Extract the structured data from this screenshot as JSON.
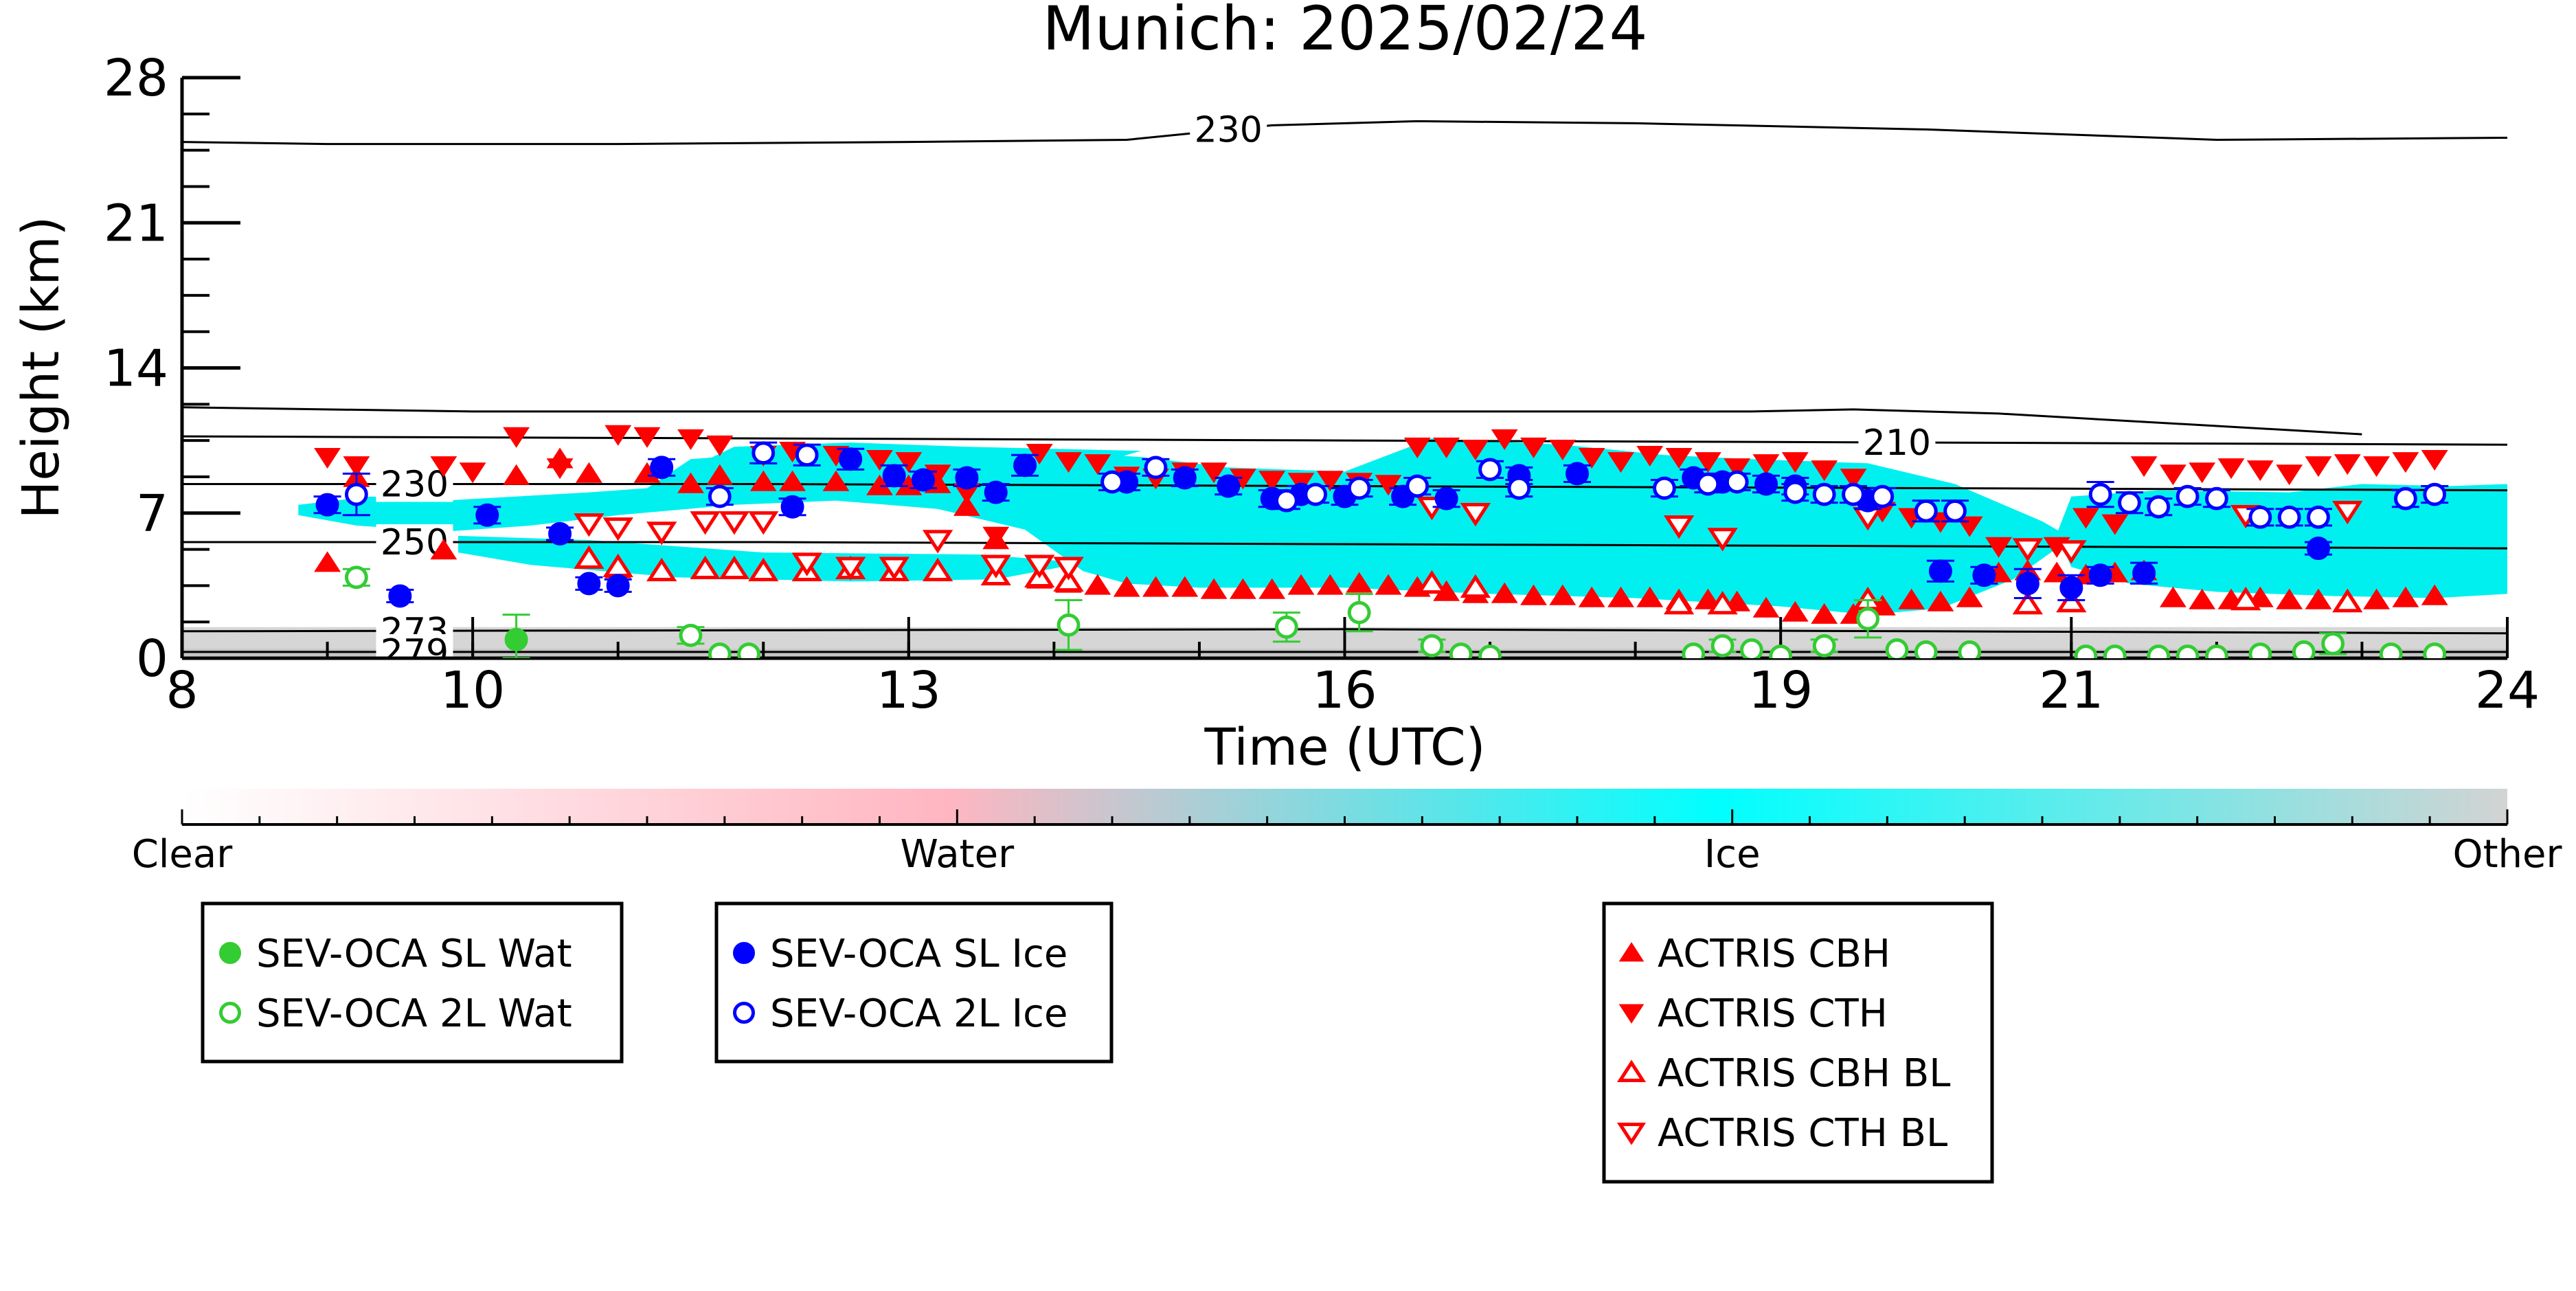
{
  "chart_data": {
    "type": "scatter",
    "title": "Munich: 2025/02/24",
    "xlabel": "Time (UTC)",
    "ylabel": "Height (km)",
    "xlim": [
      8,
      24
    ],
    "ylim": [
      0,
      28
    ],
    "x_ticks": [
      8,
      10,
      13,
      16,
      19,
      21,
      24
    ],
    "y_ticks": [
      0,
      7,
      14,
      21,
      28
    ],
    "background_field": "cloud phase (Clear / Water / Ice / Other), ice-dominated layer ~2–11 km from ~8.8 to 24 UTC",
    "colorbar": {
      "labels": [
        "Clear",
        "Water",
        "Ice",
        "Other"
      ],
      "colors": [
        "#ffffff",
        "#ffb6c1",
        "#00ffff",
        "#d3d3d3"
      ]
    },
    "contours": [
      {
        "label": "230",
        "label_x": 15.2,
        "points": [
          [
            8,
            24.9
          ],
          [
            9,
            24.8
          ],
          [
            11,
            24.8
          ],
          [
            13,
            24.9
          ],
          [
            14.5,
            25.0
          ],
          [
            15.5,
            25.7
          ],
          [
            16.5,
            25.9
          ],
          [
            18,
            25.8
          ],
          [
            20,
            25.5
          ],
          [
            22,
            25.0
          ],
          [
            24,
            25.1
          ]
        ]
      },
      {
        "label": "210",
        "label_x": 19.8,
        "points": [
          [
            8,
            10.7
          ],
          [
            12,
            10.6
          ],
          [
            16,
            10.5
          ],
          [
            20,
            10.4
          ],
          [
            24,
            10.3
          ]
        ]
      },
      {
        "label": "230",
        "label_x": 9.6,
        "points": [
          [
            8,
            8.4
          ],
          [
            12,
            8.4
          ],
          [
            16,
            8.3
          ],
          [
            20,
            8.2
          ],
          [
            24,
            8.1
          ]
        ]
      },
      {
        "label": "250",
        "label_x": 9.6,
        "points": [
          [
            8,
            5.6
          ],
          [
            12,
            5.6
          ],
          [
            16,
            5.5
          ],
          [
            20,
            5.4
          ],
          [
            24,
            5.3
          ]
        ]
      },
      {
        "label": "273",
        "label_x": 9.6,
        "points": [
          [
            8,
            1.3
          ],
          [
            12,
            1.35
          ],
          [
            16,
            1.4
          ],
          [
            20,
            1.3
          ],
          [
            24,
            1.2
          ]
        ]
      },
      {
        "label": "279",
        "label_x": 9.6,
        "points": [
          [
            8,
            0.3
          ],
          [
            16,
            0.3
          ],
          [
            24,
            0.3
          ]
        ]
      }
    ],
    "tropopause_line": {
      "points": [
        [
          8,
          12.1
        ],
        [
          10,
          11.9
        ],
        [
          13,
          11.9
        ],
        [
          16,
          11.9
        ],
        [
          18,
          11.9
        ],
        [
          18.8,
          11.9
        ],
        [
          19.5,
          12.0
        ],
        [
          20.5,
          11.8
        ],
        [
          21.5,
          11.4
        ],
        [
          22.5,
          11.0
        ],
        [
          23,
          10.8
        ]
      ]
    },
    "colors": {
      "sev_wat": "#33cc33",
      "sev_ice": "#0000ff",
      "actris": "#ff0000",
      "ice_field": "#00f0f0",
      "other_band": "#cfcfcf"
    },
    "series": [
      {
        "name": "SEV-OCA SL Wat",
        "marker": "filled-circle",
        "x": [
          10.3
        ],
        "y": [
          0.9
        ],
        "err": [
          1.2
        ]
      },
      {
        "name": "SEV-OCA 2L Wat",
        "marker": "open-circle",
        "x": [
          9.2,
          11.5,
          11.7,
          11.9,
          14.1,
          15.6,
          16.1,
          16.6,
          16.8,
          17.0,
          18.4,
          18.6,
          18.8,
          19.0,
          19.3,
          19.6,
          19.8,
          20.0,
          20.3,
          21.1,
          21.3,
          21.6,
          21.8,
          22.0,
          22.3,
          22.6,
          22.8,
          23.2,
          23.5
        ],
        "y": [
          3.9,
          1.1,
          0.2,
          0.2,
          1.6,
          1.5,
          2.2,
          0.6,
          0.2,
          0.1,
          0.2,
          0.6,
          0.4,
          0.1,
          0.6,
          1.9,
          0.4,
          0.3,
          0.3,
          0.1,
          0.1,
          0.1,
          0.1,
          0.1,
          0.2,
          0.3,
          0.7,
          0.2,
          0.2
        ],
        "err": [
          0.4,
          0.4,
          0,
          0,
          1.2,
          0.7,
          0.9,
          0.3,
          0,
          0,
          0,
          0.3,
          0,
          0,
          0.3,
          0.9,
          0,
          0,
          0,
          0,
          0,
          0,
          0,
          0,
          0,
          0,
          0.5,
          0,
          0
        ]
      },
      {
        "name": "SEV-OCA SL Ice",
        "marker": "filled-circle",
        "x": [
          9.0,
          9.5,
          10.1,
          10.6,
          10.8,
          11.0,
          11.3,
          12.2,
          12.6,
          12.9,
          13.1,
          13.4,
          13.6,
          13.8,
          14.5,
          14.9,
          15.2,
          15.5,
          15.7,
          16.0,
          16.4,
          16.7,
          17.2,
          17.6,
          18.4,
          18.6,
          18.9,
          19.1,
          19.6,
          20.1,
          20.4,
          20.7,
          21.0,
          21.2,
          21.5,
          22.7
        ],
        "y": [
          7.4,
          3.0,
          6.9,
          6.0,
          3.6,
          3.5,
          9.2,
          7.3,
          9.6,
          8.8,
          8.6,
          8.7,
          8.0,
          9.3,
          8.5,
          8.7,
          8.3,
          7.7,
          7.9,
          7.8,
          7.8,
          7.7,
          8.8,
          8.9,
          8.7,
          8.5,
          8.4,
          8.3,
          7.6,
          4.2,
          4.0,
          3.6,
          3.4,
          4.0,
          4.1,
          5.3
        ],
        "err": [
          0.4,
          0.3,
          0.4,
          0.3,
          0.3,
          0.3,
          0.4,
          0.4,
          0.5,
          0.5,
          0.4,
          0.4,
          0.4,
          0.5,
          0.4,
          0.4,
          0.4,
          0.4,
          0.4,
          0.4,
          0.4,
          0.4,
          0.4,
          0.4,
          0.4,
          0.4,
          0.4,
          0.4,
          0.4,
          0.5,
          0.4,
          0.7,
          0.6,
          0.4,
          0.5,
          0.3
        ]
      },
      {
        "name": "SEV-OCA 2L Ice",
        "marker": "open-circle",
        "x": [
          9.2,
          11.7,
          12.0,
          12.3,
          14.4,
          14.7,
          15.6,
          15.8,
          16.1,
          16.5,
          17.0,
          17.2,
          18.2,
          18.5,
          18.7,
          19.1,
          19.3,
          19.5,
          19.7,
          20.0,
          20.2,
          21.2,
          21.4,
          21.6,
          21.8,
          22.0,
          22.3,
          22.5,
          22.7,
          23.3,
          23.5
        ],
        "y": [
          7.9,
          7.8,
          9.9,
          9.8,
          8.5,
          9.2,
          7.6,
          7.9,
          8.2,
          8.3,
          9.1,
          8.2,
          8.2,
          8.4,
          8.5,
          8.0,
          7.9,
          7.9,
          7.8,
          7.1,
          7.1,
          7.9,
          7.5,
          7.3,
          7.8,
          7.7,
          6.8,
          6.8,
          6.8,
          7.7,
          7.9
        ],
        "err": [
          1.0,
          0.4,
          0.5,
          0.5,
          0.4,
          0.4,
          0.4,
          0.4,
          0.4,
          0.4,
          0.4,
          0.4,
          0.4,
          0.4,
          0.4,
          0.4,
          0.4,
          0.4,
          0.4,
          0.5,
          0.5,
          0.6,
          0.5,
          0.4,
          0.4,
          0.4,
          0.4,
          0.4,
          0.4,
          0.4,
          0.4
        ]
      },
      {
        "name": "ACTRIS CBH",
        "marker": "triangle-up",
        "x": [
          9.0,
          9.2,
          9.8,
          10.3,
          10.6,
          10.8,
          11.0,
          11.2,
          11.5,
          11.7,
          12.0,
          12.2,
          12.5,
          12.8,
          13.0,
          13.2,
          13.4,
          13.6,
          13.9,
          14.1,
          14.3,
          14.5,
          14.7,
          14.9,
          15.1,
          15.3,
          15.5,
          15.7,
          15.9,
          16.1,
          16.3,
          16.5,
          16.7,
          16.9,
          17.1,
          17.3,
          17.5,
          17.7,
          17.9,
          18.1,
          18.3,
          18.5,
          18.7,
          18.9,
          19.1,
          19.3,
          19.5,
          19.7,
          19.9,
          20.1,
          20.3,
          20.5,
          20.7,
          20.9,
          21.1,
          21.3,
          21.5,
          21.7,
          21.9,
          22.1,
          22.3,
          22.5,
          22.7,
          22.9,
          23.1,
          23.3,
          23.5
        ],
        "y": [
          4.6,
          8.7,
          5.2,
          8.8,
          9.6,
          8.9,
          4.3,
          8.9,
          8.4,
          8.8,
          8.5,
          8.5,
          8.5,
          8.3,
          8.3,
          8.4,
          7.3,
          5.7,
          3.8,
          3.6,
          3.5,
          3.4,
          3.4,
          3.4,
          3.3,
          3.3,
          3.3,
          3.5,
          3.5,
          3.6,
          3.5,
          3.4,
          3.2,
          3.1,
          3.1,
          3.0,
          3.0,
          2.9,
          2.9,
          2.9,
          2.8,
          2.8,
          2.7,
          2.4,
          2.2,
          2.1,
          2.1,
          2.5,
          2.8,
          2.7,
          2.9,
          4.1,
          4.2,
          4.1,
          4.0,
          4.1,
          4.2,
          2.9,
          2.8,
          2.8,
          2.9,
          2.8,
          2.8,
          2.8,
          2.8,
          2.9,
          3.0
        ]
      },
      {
        "name": "ACTRIS CTH",
        "marker": "triangle-down",
        "x": [
          9.0,
          9.2,
          9.8,
          10.0,
          10.3,
          10.6,
          11.0,
          11.2,
          11.5,
          11.7,
          12.0,
          12.2,
          12.5,
          12.8,
          13.0,
          13.2,
          13.4,
          13.6,
          13.9,
          14.1,
          14.3,
          14.5,
          14.7,
          14.9,
          15.1,
          15.3,
          15.5,
          15.7,
          15.9,
          16.1,
          16.3,
          16.5,
          16.7,
          16.9,
          17.1,
          17.3,
          17.5,
          17.7,
          17.9,
          18.1,
          18.3,
          18.5,
          18.7,
          18.9,
          19.1,
          19.3,
          19.5,
          19.7,
          19.9,
          20.1,
          20.3,
          20.5,
          20.7,
          20.9,
          21.1,
          21.3,
          21.5,
          21.7,
          21.9,
          22.1,
          22.3,
          22.5,
          22.7,
          22.9,
          23.1,
          23.3,
          23.5
        ],
        "y": [
          9.7,
          9.3,
          9.3,
          9.0,
          10.7,
          9.2,
          10.8,
          10.7,
          10.6,
          10.3,
          9.8,
          10.0,
          9.8,
          9.6,
          9.5,
          8.9,
          8.0,
          5.9,
          9.9,
          9.5,
          9.4,
          8.8,
          8.7,
          9.0,
          9.0,
          8.7,
          8.6,
          8.5,
          8.6,
          8.5,
          8.4,
          10.2,
          10.2,
          10.1,
          10.6,
          10.2,
          10.1,
          9.7,
          9.5,
          9.8,
          9.7,
          9.5,
          9.2,
          9.4,
          9.5,
          9.1,
          8.7,
          7.1,
          6.8,
          6.6,
          6.4,
          5.4,
          5.3,
          5.4,
          6.8,
          6.5,
          9.3,
          8.9,
          9.0,
          9.2,
          9.1,
          8.9,
          9.3,
          9.4,
          9.3,
          9.5,
          9.6
        ]
      },
      {
        "name": "ACTRIS CBH BL",
        "marker": "open-triangle-up",
        "x": [
          10.8,
          11.0,
          11.3,
          11.6,
          11.8,
          12.0,
          12.3,
          12.6,
          12.9,
          13.2,
          13.6,
          13.9,
          14.1,
          16.6,
          16.9,
          18.3,
          18.6,
          19.6,
          20.7,
          21.0,
          22.2,
          22.9
        ],
        "y": [
          4.8,
          4.4,
          4.2,
          4.3,
          4.3,
          4.2,
          4.2,
          4.3,
          4.2,
          4.2,
          4.0,
          3.9,
          3.7,
          3.6,
          3.4,
          2.6,
          2.6,
          2.8,
          2.6,
          2.7,
          2.8,
          2.7
        ]
      },
      {
        "name": "ACTRIS CTH BL",
        "marker": "open-triangle-down",
        "x": [
          10.8,
          11.0,
          11.3,
          11.6,
          11.8,
          12.0,
          12.3,
          12.6,
          12.9,
          13.2,
          13.6,
          13.9,
          14.1,
          16.6,
          16.9,
          18.3,
          18.6,
          19.6,
          20.7,
          21.0,
          22.2,
          22.9
        ],
        "y": [
          6.5,
          6.3,
          6.1,
          6.6,
          6.6,
          6.6,
          4.6,
          4.4,
          4.4,
          5.7,
          4.5,
          4.5,
          4.4,
          7.3,
          7.0,
          6.4,
          5.8,
          6.8,
          5.3,
          5.2,
          6.9,
          7.1
        ]
      }
    ]
  }
}
